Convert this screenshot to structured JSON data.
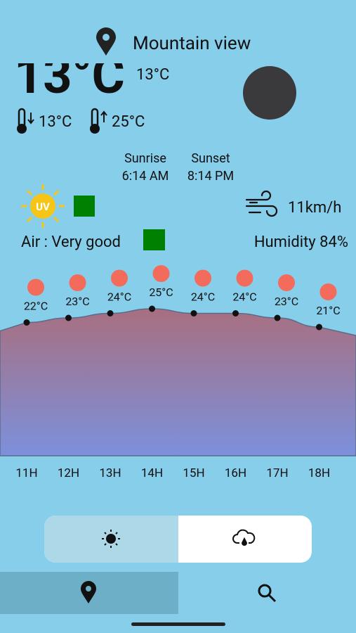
{
  "location": "Mountain view",
  "current_temp": "13°C",
  "feels_like": "13°C",
  "min_temp": "13°C",
  "max_temp": "25°C",
  "sunrise": {
    "label": "Sunrise",
    "time": "6:14 AM"
  },
  "sunset": {
    "label": "Sunset",
    "time": "8:14 PM"
  },
  "uv_label": "UV",
  "wind": "11km/h",
  "air": "Air : Very good",
  "humidity": "Humidity 84%",
  "hourly": {
    "hours": [
      "11H",
      "12H",
      "13H",
      "14H",
      "15H",
      "16H",
      "17H",
      "18H"
    ],
    "temps": [
      22,
      23,
      24,
      25,
      24,
      24,
      23,
      21
    ],
    "temp_labels": [
      "22°C",
      "23°C",
      "24°C",
      "25°C",
      "24°C",
      "24°C",
      "23°C",
      "21°C"
    ]
  }
}
